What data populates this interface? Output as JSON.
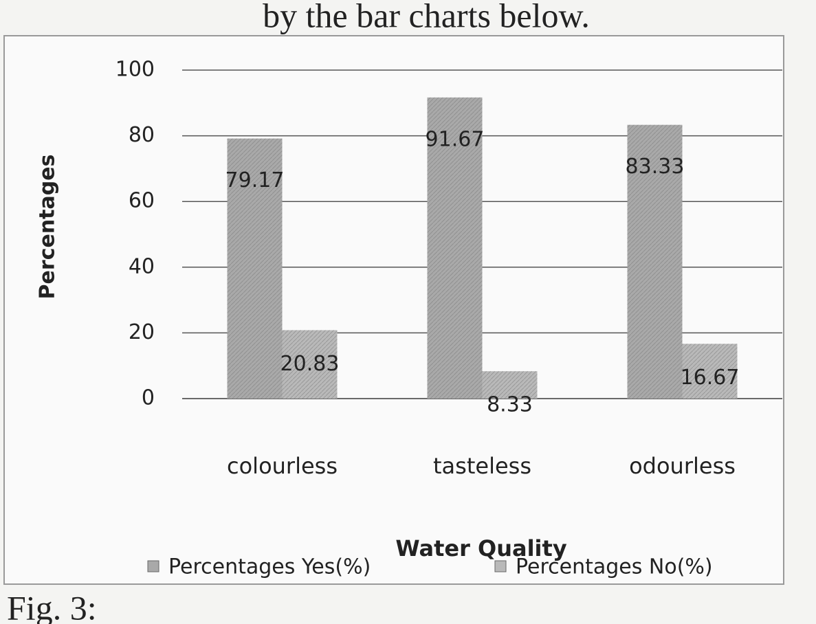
{
  "caption_above": "by the bar charts below.",
  "caption_below": "Fig. 3:",
  "chart_data": {
    "type": "bar",
    "xlabel": "Water Quality",
    "ylabel": "Percentages",
    "categories": [
      "colourless",
      "tasteless",
      "odourless"
    ],
    "series": [
      {
        "name": "Percentages Yes(%)",
        "color": "#a9a9a9",
        "values": [
          79.17,
          91.67,
          83.33
        ]
      },
      {
        "name": "Percentages No(%)",
        "color": "#b9b9b9",
        "values": [
          20.83,
          8.33,
          16.67
        ]
      }
    ],
    "ylim": [
      0,
      100
    ],
    "yticks": [
      0,
      20,
      40,
      60,
      80,
      100
    ],
    "grid": true,
    "legend": "bottom"
  }
}
